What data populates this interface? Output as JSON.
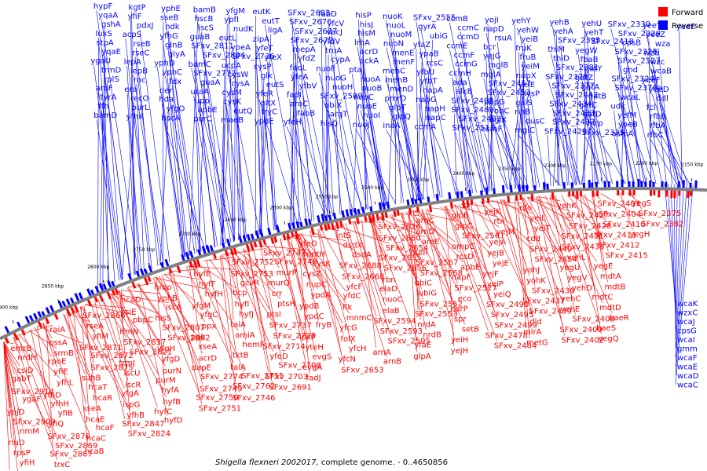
{
  "caption": {
    "organism": "Shigella flexneri 2002017,",
    "rest": " complete genome. - 0..4650856"
  },
  "legend": [
    {
      "label": "Forward",
      "color": "#ff0000"
    },
    {
      "label": "Reverse",
      "color": "#0000ff"
    }
  ],
  "colors": {
    "forward": "#ff0000",
    "reverse": "#0000ff",
    "backbone": "#808080"
  },
  "scale_labels": [
    "2900 kbp",
    "2850 kbp",
    "2800 kbp",
    "2750 kbp",
    "2700 kbp",
    "2650 kbp",
    "2600 kbp",
    "2550 kbp",
    "2500 kbp",
    "2450 kbp",
    "2400 kbp",
    "2350 kbp",
    "2300 kbp",
    "2250 kbp",
    "2200 kbp",
    "2150 kbp"
  ],
  "reverse_genes": [
    "hypF",
    "yqaA",
    "gshA",
    "luxS",
    "stpA",
    "yqaE",
    "ygaU",
    "trmD",
    "rplS",
    "aroF",
    "tyrA",
    "ffh",
    "bamD",
    "kgtP",
    "yfiF",
    "pdxJ",
    "acpS",
    "rseB",
    "rseC",
    "lepA",
    "lepB",
    "rnc",
    "era",
    "recO",
    "purL",
    "yfhK",
    "yphE",
    "sseB",
    "ndk",
    "yfhG",
    "glnB",
    "glyA",
    "yphD",
    "yphC",
    "fdx",
    "der",
    "hda",
    "yfgO",
    "hscA",
    "bamB",
    "hscB",
    "iscS",
    "guaB",
    "SFxv_2811",
    "SFxv_2804",
    "bamC",
    "SFxv_2772",
    "guaA",
    "uraA",
    "upp",
    "apbE",
    "purC",
    "yfgM",
    "ypfI",
    "nudK",
    "eutL",
    "ypeA",
    "SFxv_2736",
    "ucpA",
    "cysW",
    "cysA",
    "cysM",
    "cysK",
    "eutQ",
    "maeB",
    "eutK",
    "eutT",
    "ligA",
    "zipA",
    "yfeT",
    "yfeX",
    "cysP",
    "glk",
    "eutS",
    "yfeR",
    "gltX",
    "fryC",
    "ypdE",
    "SFxv_2683",
    "SFxv_2676",
    "SFxv_2687",
    "SFxv_2672",
    "mepA",
    "yfdZ",
    "fadL",
    "yfeA",
    "yfbV",
    "fadI",
    "aroC",
    "fabB",
    "yfeH",
    "fabD",
    "yfcV",
    "vacJ",
    "yfdV",
    "truA",
    "cypA",
    "nuoF",
    "nuoG",
    "nuoH",
    "SFxv_2589",
    "ubiX",
    "argT",
    "hisQ",
    "hisP",
    "hisJ",
    "hisM",
    "lrhA",
    "acrD",
    "ackA",
    "pta",
    "nuoA",
    "nuoB",
    "nuoC",
    "nuoE",
    "nuoI",
    "nuoJ",
    "nuoK",
    "nuoL",
    "nuoM",
    "nuoN",
    "menE",
    "menF",
    "menC",
    "menB",
    "menD",
    "pmrD",
    "glpT",
    "glpQ",
    "inaA",
    "SFxv_2555",
    "gyrA",
    "ubiG",
    "yfaZ",
    "ypaB",
    "rcsC",
    "yfbU",
    "yfbT",
    "napA",
    "napG",
    "napH",
    "napC",
    "ccmA",
    "ccmB",
    "ccmC",
    "ccmD",
    "ccmE",
    "ccmF",
    "ccmG",
    "ccmH",
    "ada",
    "alkB",
    "SFxv_2492",
    "SFxv_2489",
    "SFxv_2483",
    "SFxv_2511",
    "yojI",
    "napD",
    "rsuA",
    "bcr",
    "yejG",
    "mglB",
    "mglA",
    "SFxv_2457",
    "SFxv_2453",
    "pbpG",
    "yohC",
    "bglX",
    "osmF",
    "yehY",
    "yehW",
    "yeiB",
    "fruK",
    "fruB",
    "yeiM",
    "nupX",
    "yeiE",
    "lysP",
    "galS",
    "rihB",
    "dusC",
    "mglC",
    "yehB",
    "yehA",
    "SFxv_2395",
    "thiM",
    "thiD",
    "SFxv_2381",
    "SFxv_2379",
    "SFxv_2377",
    "SFxv_2442",
    "SFxv_2434",
    "SFxv_2433",
    "SFxv_2432",
    "SFxv_2429",
    "yehU",
    "yehT",
    "SFxv_2418",
    "yegW",
    "fbaB",
    "gatY",
    "gatZ",
    "gatA",
    "gatB",
    "gatC",
    "gatD",
    "mrp",
    "SFxv_2335",
    "SFxv_2330",
    "SFxv_2329",
    "cpsB",
    "SFxv_2328",
    "SFxv_2327",
    "gnd",
    "SFxv_2324",
    "SFxv_2376a",
    "wcaL",
    "udk",
    "yefM",
    "yoeB",
    "asmA",
    "yeeY",
    "yeeZ",
    "wza",
    "wzb",
    "wzc",
    "wcaB",
    "yeeF",
    "yeeD",
    "ddl",
    "fcl",
    "rfbB",
    "rfbA",
    "rfbC",
    "yeeE"
  ],
  "forward_genes": [
    "emrB",
    "nrdH",
    "csiD",
    "gabT",
    "SFxv_2914",
    "ygaF",
    "ypjD",
    "SFxv_2909",
    "rimM",
    "rluD",
    "rpsP",
    "yfiH",
    "clpB",
    "yfjD",
    "raiA",
    "pssA",
    "srmB",
    "rpoE",
    "yfiE",
    "yfhL",
    "yfhD",
    "yfhH",
    "yfiB",
    "yfiQ",
    "SFxv_2870",
    "SFxv_2869",
    "SFxv_2867",
    "trxC",
    "SFxv_2866",
    "rseA",
    "yfiM",
    "SFxv_2871",
    "SFxv_2872",
    "SFxv_2875",
    "suhB",
    "hcaT",
    "hcaR",
    "sseA",
    "hcaE",
    "hcaF",
    "hcaC",
    "hcaB",
    "hcaD",
    "csiE",
    "pbpC",
    "rlmN",
    "SFxv_2837",
    "SFxv_2821",
    "trmJ",
    "iscU",
    "iscR",
    "yfgA",
    "ispG",
    "yfhB",
    "SFxv_2847",
    "SFxv_2824",
    "hmp",
    "yphB",
    "iscA",
    "hisS",
    "SFxv_2807",
    "SFxv_2802",
    "yfgH",
    "yfgD",
    "purN",
    "purM",
    "hyfA",
    "hyfB",
    "hyfC",
    "hyfD",
    "hyfE",
    "hyfF",
    "hyfH",
    "yfgM",
    "yfgC",
    "ppx",
    "ppk",
    "xseA",
    "acrD",
    "dapE",
    "SFxv_2774",
    "SFxv_2749",
    "SFxv_2750",
    "SFxv_2751",
    "SFxv_2752",
    "SFxv_2753",
    "gcvR",
    "bcp",
    "hyfI",
    "hyfJ",
    "taiA",
    "amiA",
    "hemF",
    "tktB",
    "talA",
    "SFxv_2755",
    "SFxv_2762",
    "SFxv_2746",
    "SFxv_2747",
    "SFxv_2748",
    "murP",
    "murQ",
    "crr",
    "ptsH",
    "ptsI",
    "SFxv_2737",
    "SFxv_2723",
    "SFxv_2714",
    "yfeD",
    "SFxv_2708",
    "SFxv_2703",
    "SFxv_2691",
    "yfeO",
    "mntH",
    "cysK",
    "cysZ",
    "nupC",
    "ypdA",
    "ypdB",
    "ypdC",
    "fryB",
    "lpxP",
    "yteH",
    "evgS",
    "evgA",
    "fadJ",
    "intS",
    "dsdX",
    "dsdA",
    "SFxv_2688",
    "SFxv_2668",
    "yfcF",
    "yfdC",
    "flk",
    "mnmC",
    "yfcG",
    "folX",
    "yfcH",
    "yfcN",
    "SFxv_2653",
    "SFxv_2626",
    "SFxv_2660",
    "SFxv_2654",
    "SFxv_2655",
    "SFxv_2656",
    "rbn",
    "elaD",
    "nuoC",
    "elaB",
    "SFxv_2594",
    "SFxv_2593",
    "SFxv_2595",
    "arnA",
    "arnB",
    "arnC",
    "arnD",
    "arnE",
    "nudI",
    "SFxv_2567",
    "SFxv_2568",
    "ubiC",
    "ubiG",
    "SFxv_2552",
    "SFxv_2553",
    "nrdA",
    "nrdB",
    "yfaE",
    "glpA",
    "glpB",
    "glpC",
    "SFxv_2561",
    "ompC",
    "rcsD",
    "apbE",
    "napF",
    "SFxv_2527",
    "eco",
    "narP",
    "spr",
    "setB",
    "yeiH",
    "yejH",
    "yejK",
    "rtn",
    "yejM",
    "yejA",
    "yejB",
    "yejE",
    "yejF",
    "yeiP",
    "yeiQ",
    "SFxv_2490",
    "SFxv_2495",
    "SFxv_2499",
    "SFxv_2478",
    "SFxv_2484",
    "nfo",
    "yeiL",
    "yeiT",
    "cdd",
    "SFxv_2449",
    "SFxv_2454",
    "yohJ",
    "yohK",
    "SFxv_2436",
    "SFxv_2437",
    "SFxv_2439",
    "dld",
    "mlrA",
    "metG",
    "yehK",
    "SFxv_2427",
    "SFxv_2428",
    "SFxv_2431",
    "SFxv_2435",
    "yehL",
    "yegU",
    "yegV",
    "yehD",
    "yehC",
    "yehE",
    "SFxv_2408",
    "SFxv_2409",
    "SFxv_2402",
    "SFxv_2403",
    "SFxv_2404",
    "SFxv_2410",
    "SFxv_2411",
    "SFxv_2412",
    "SFxv_2415",
    "yegE",
    "mdtA",
    "mdtB",
    "mdtC",
    "mdtD",
    "baeR",
    "baeS",
    "yegQ",
    "yegS",
    "SFxv_2375",
    "SFxv_2382",
    "yegH"
  ],
  "right_column_genes": [
    "wcaK",
    "wzxC",
    "wcaJ",
    "cpsG",
    "wcaI",
    "gmm",
    "wcaF",
    "wcaE",
    "wcaD",
    "wcaC"
  ]
}
